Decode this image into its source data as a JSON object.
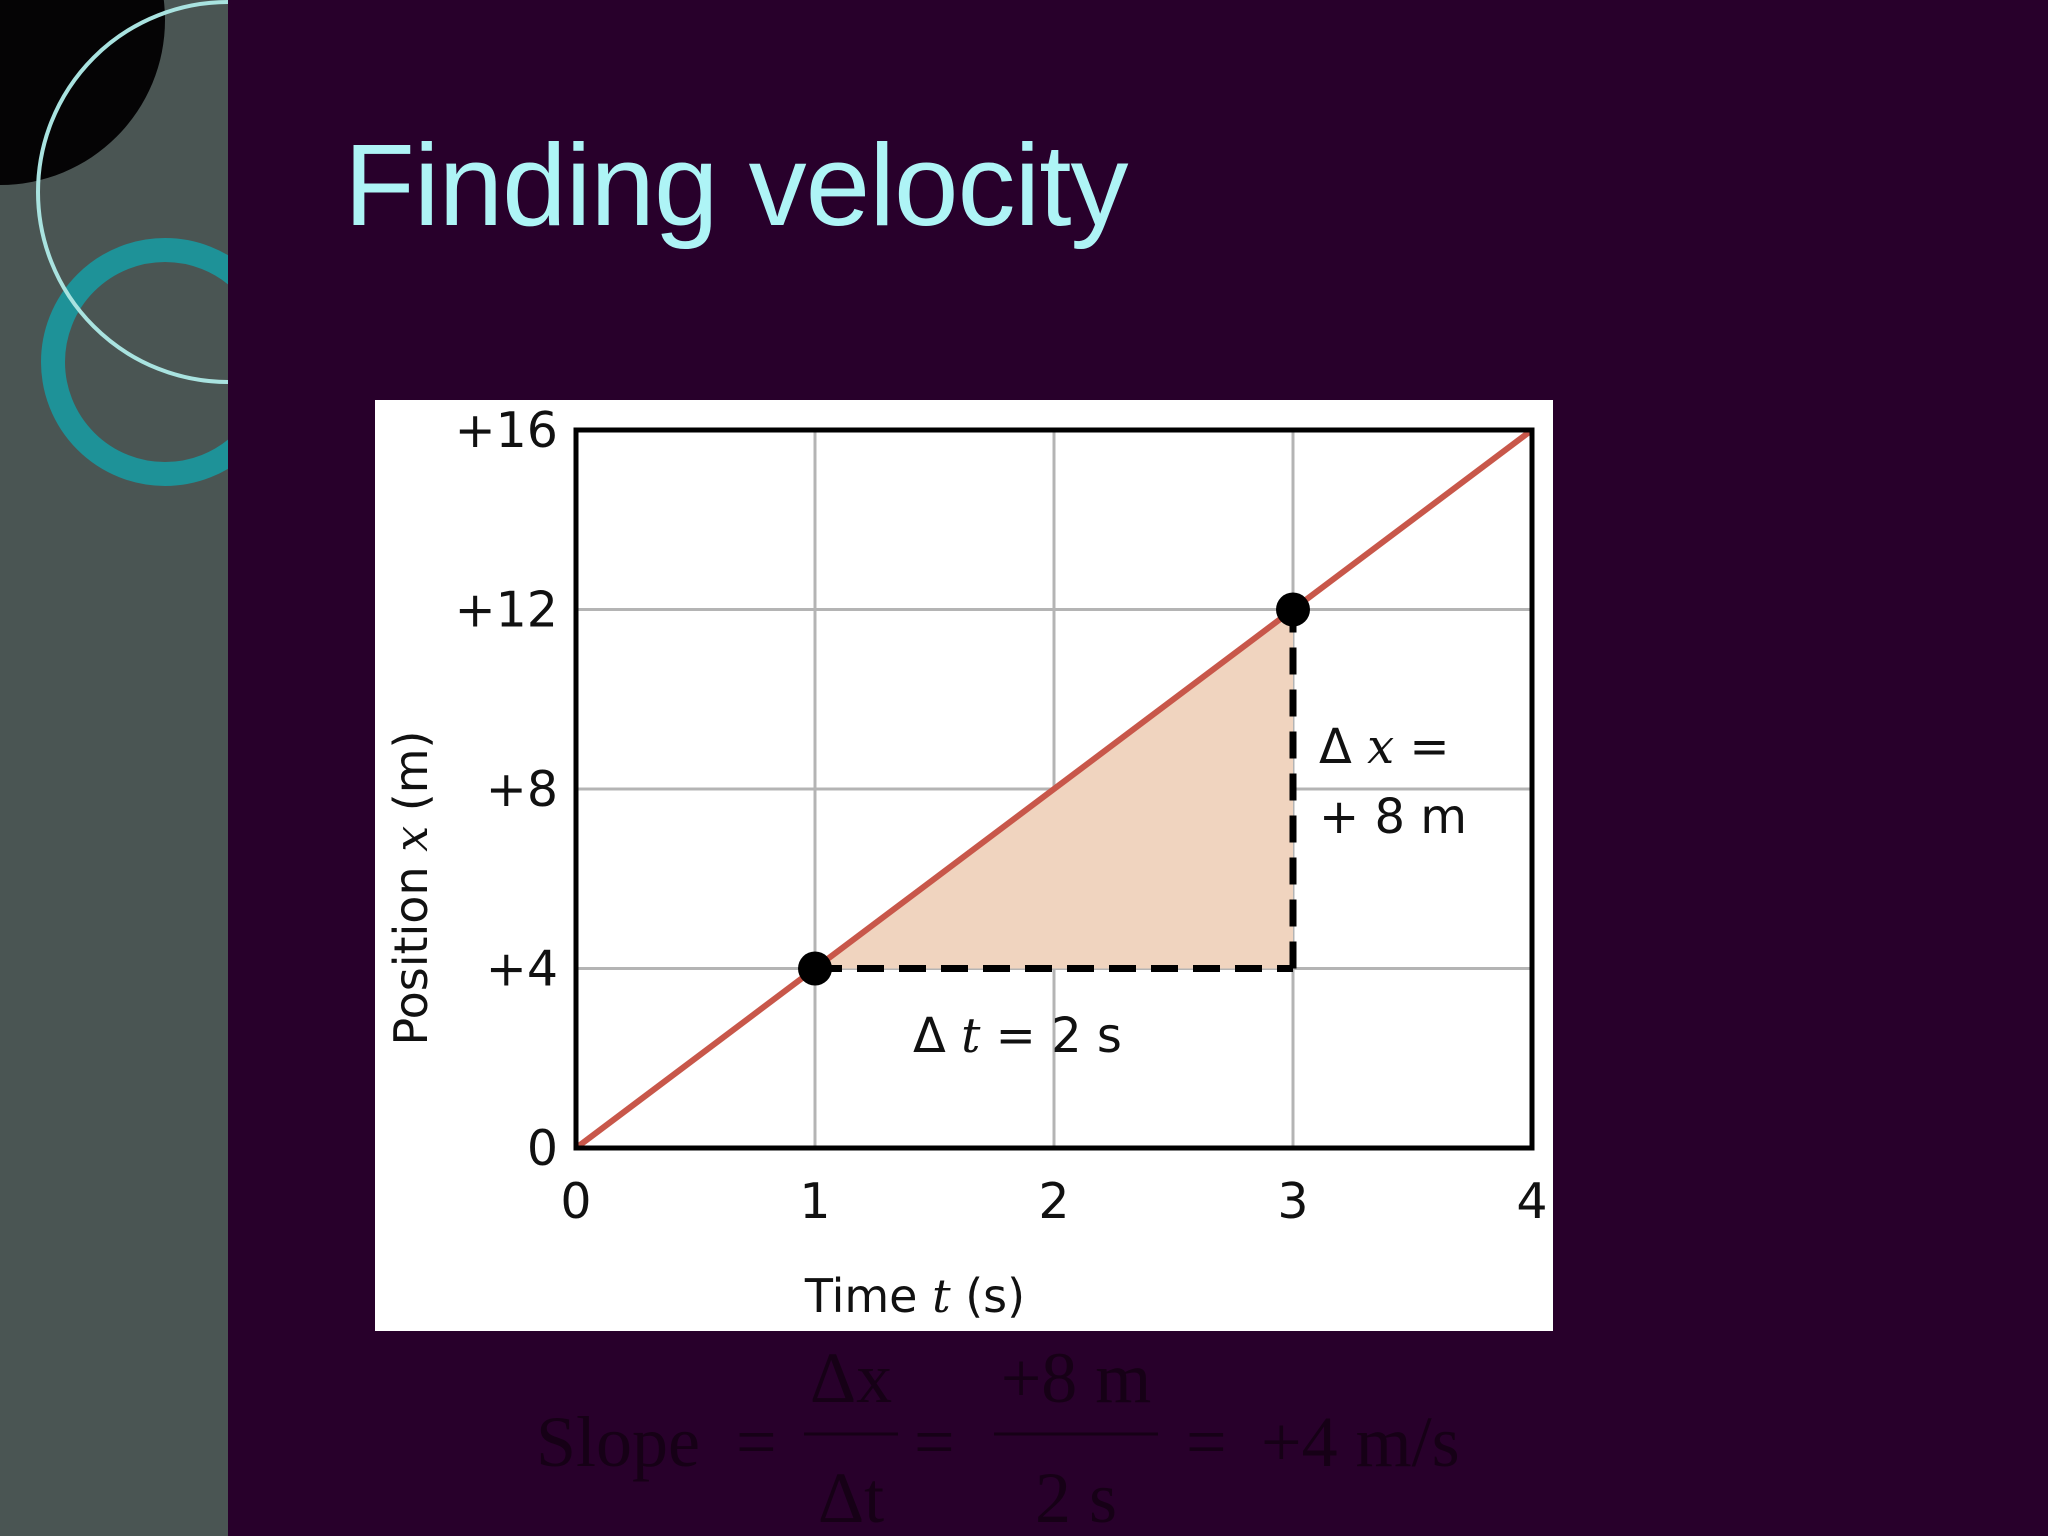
{
  "slide": {
    "title": "Finding velocity",
    "colors": {
      "background": "#28002b",
      "title": "#aef4f6",
      "sidebar": "#4a5553",
      "ring_teal": "#1e9298"
    }
  },
  "chart_data": {
    "type": "line",
    "xlabel": {
      "prefix": "Time",
      "var": "t",
      "unit": "(s)"
    },
    "ylabel": {
      "prefix": "Position",
      "var": "x",
      "unit": "(m)"
    },
    "xlim": [
      0,
      4
    ],
    "ylim": [
      0,
      16
    ],
    "x_ticks": [
      {
        "v": 0,
        "label": "0"
      },
      {
        "v": 1,
        "label": "1"
      },
      {
        "v": 2,
        "label": "2"
      },
      {
        "v": 3,
        "label": "3"
      },
      {
        "v": 4,
        "label": "4"
      }
    ],
    "y_ticks": [
      {
        "v": 0,
        "label": "0"
      },
      {
        "v": 4,
        "label": "+4"
      },
      {
        "v": 8,
        "label": "+8"
      },
      {
        "v": 12,
        "label": "+12"
      },
      {
        "v": 16,
        "label": "+16"
      }
    ],
    "grid": true,
    "series": [
      {
        "x": [
          0,
          4
        ],
        "y": [
          0,
          16
        ],
        "color": "#c8574a"
      }
    ],
    "highlighted_points": [
      {
        "x": 1,
        "y": 4
      },
      {
        "x": 3,
        "y": 12
      }
    ],
    "slope_triangle": {
      "from": {
        "x": 1,
        "y": 4
      },
      "to": {
        "x": 3,
        "y": 12
      },
      "fill": "#f0d4bf"
    },
    "annotations": {
      "delta_t": {
        "sym": "Δ",
        "var": "t",
        "rest": "= 2 s"
      },
      "delta_x": {
        "sym": "Δ",
        "var": "x",
        "rest": "=",
        "line2": "+ 8 m"
      }
    }
  },
  "formula": {
    "lhs": "Slope",
    "eq": "=",
    "frac1_num": "Δx",
    "frac1_den": "Δt",
    "frac2_num": "+8 m",
    "frac2_den": "2 s",
    "result": "+4 m/s"
  }
}
